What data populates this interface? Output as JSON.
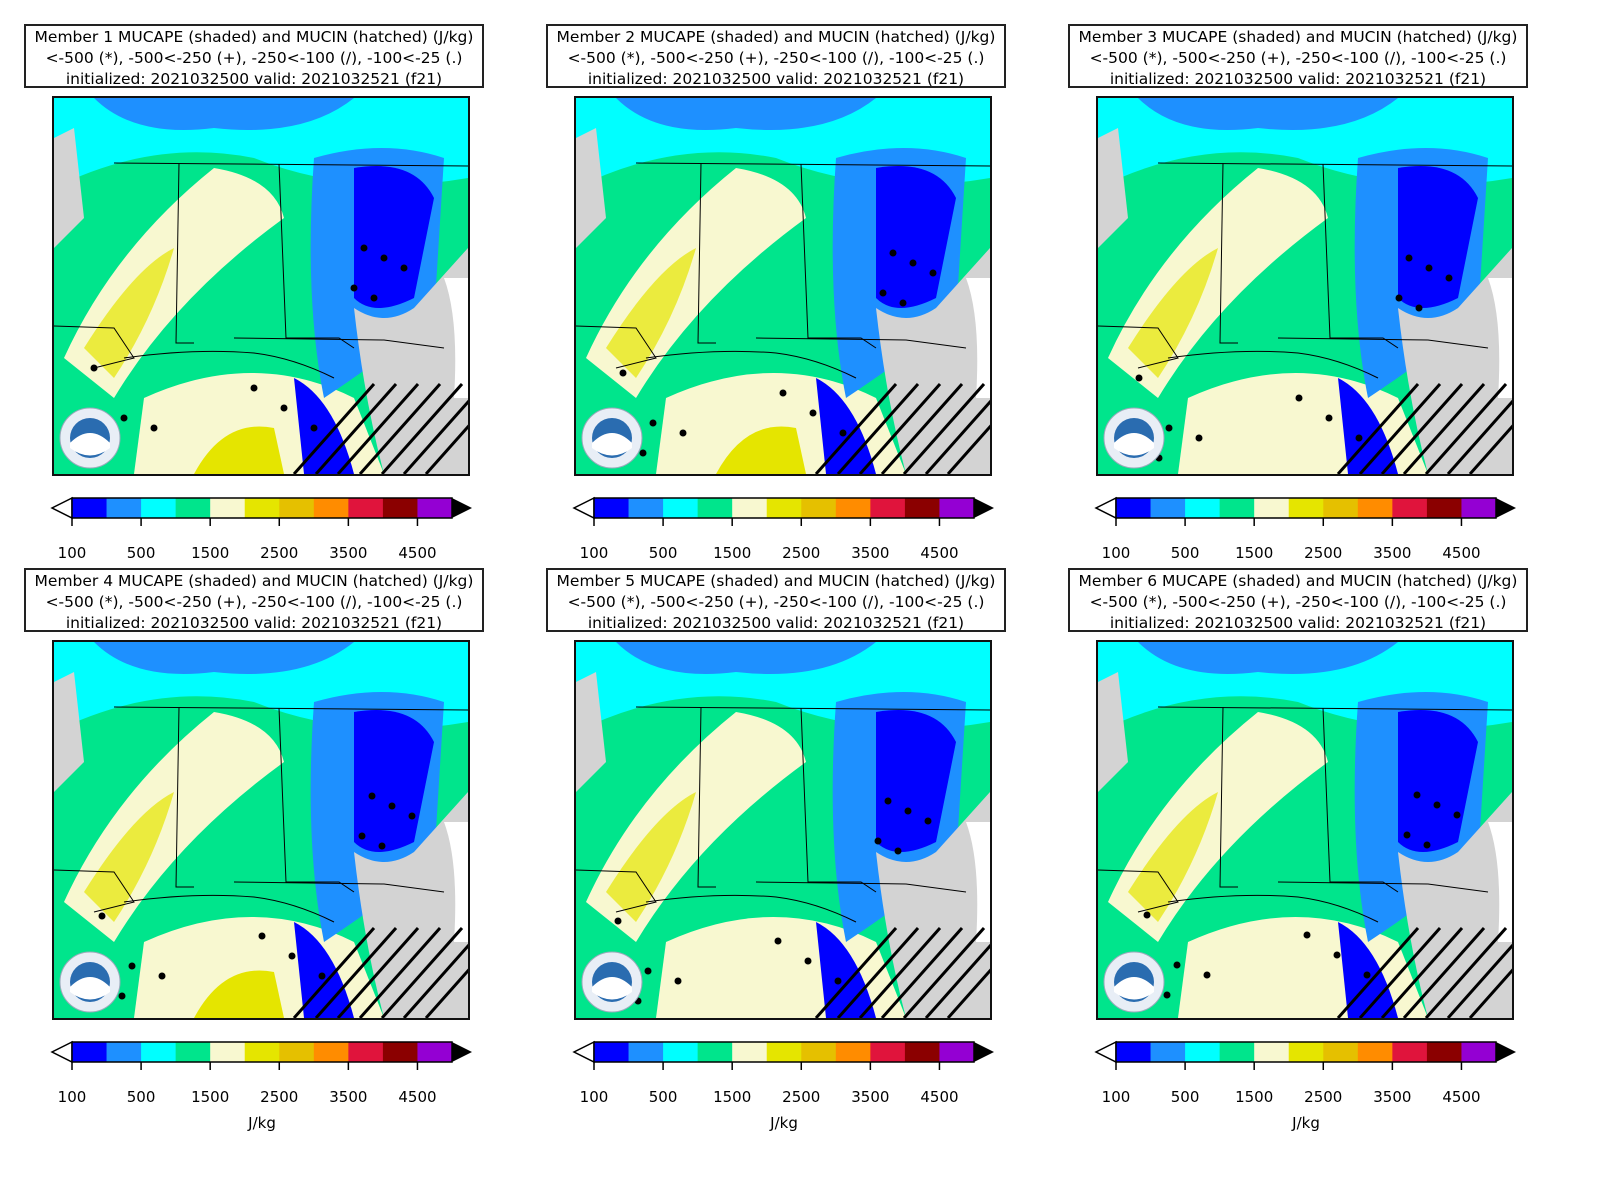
{
  "panels": [
    {
      "title_line1": "Member 1 MUCAPE (shaded) and MUCIN (hatched) (J/kg)",
      "title_line2": "<-500 (*), -500<-250 (+), -250<-100 (/), -100<-25 (.)",
      "title_line3": "initialized: 2021032500 valid: 2021032521 (f21)"
    },
    {
      "title_line1": "Member 2 MUCAPE (shaded) and MUCIN (hatched) (J/kg)",
      "title_line2": "<-500 (*), -500<-250 (+), -250<-100 (/), -100<-25 (.)",
      "title_line3": "initialized: 2021032500 valid: 2021032521 (f21)"
    },
    {
      "title_line1": "Member 3 MUCAPE (shaded) and MUCIN (hatched) (J/kg)",
      "title_line2": "<-500 (*), -500<-250 (+), -250<-100 (/), -100<-25 (.)",
      "title_line3": "initialized: 2021032500 valid: 2021032521 (f21)"
    },
    {
      "title_line1": "Member 4 MUCAPE (shaded) and MUCIN (hatched) (J/kg)",
      "title_line2": "<-500 (*), -500<-250 (+), -250<-100 (/), -100<-25 (.)",
      "title_line3": "initialized: 2021032500 valid: 2021032521 (f21)"
    },
    {
      "title_line1": "Member 5 MUCAPE (shaded) and MUCIN (hatched) (J/kg)",
      "title_line2": "<-500 (*), -500<-250 (+), -250<-100 (/), -100<-25 (.)",
      "title_line3": "initialized: 2021032500 valid: 2021032521 (f21)"
    },
    {
      "title_line1": "Member 6 MUCAPE (shaded) and MUCIN (hatched) (J/kg)",
      "title_line2": "<-500 (*), -500<-250 (+), -250<-100 (/), -100<-25 (.)",
      "title_line3": "initialized: 2021032500 valid: 2021032521 (f21)"
    }
  ],
  "colorbar": {
    "tick_labels": [
      "100",
      "500",
      "1500",
      "2500",
      "3500",
      "4500"
    ],
    "colors": [
      "#0000ff",
      "#1e90ff",
      "#00ffff",
      "#00e58c",
      "#f8f8d0",
      "#e5e500",
      "#e5c000",
      "#ff8c00",
      "#e0143c",
      "#8b0000",
      "#9400d3"
    ],
    "under_color": "#ffffff",
    "over_color": "#000000",
    "unit": "J/kg"
  },
  "map": {
    "land_missing_color": "#d3d3d3",
    "logo": "noaa-logo"
  }
}
